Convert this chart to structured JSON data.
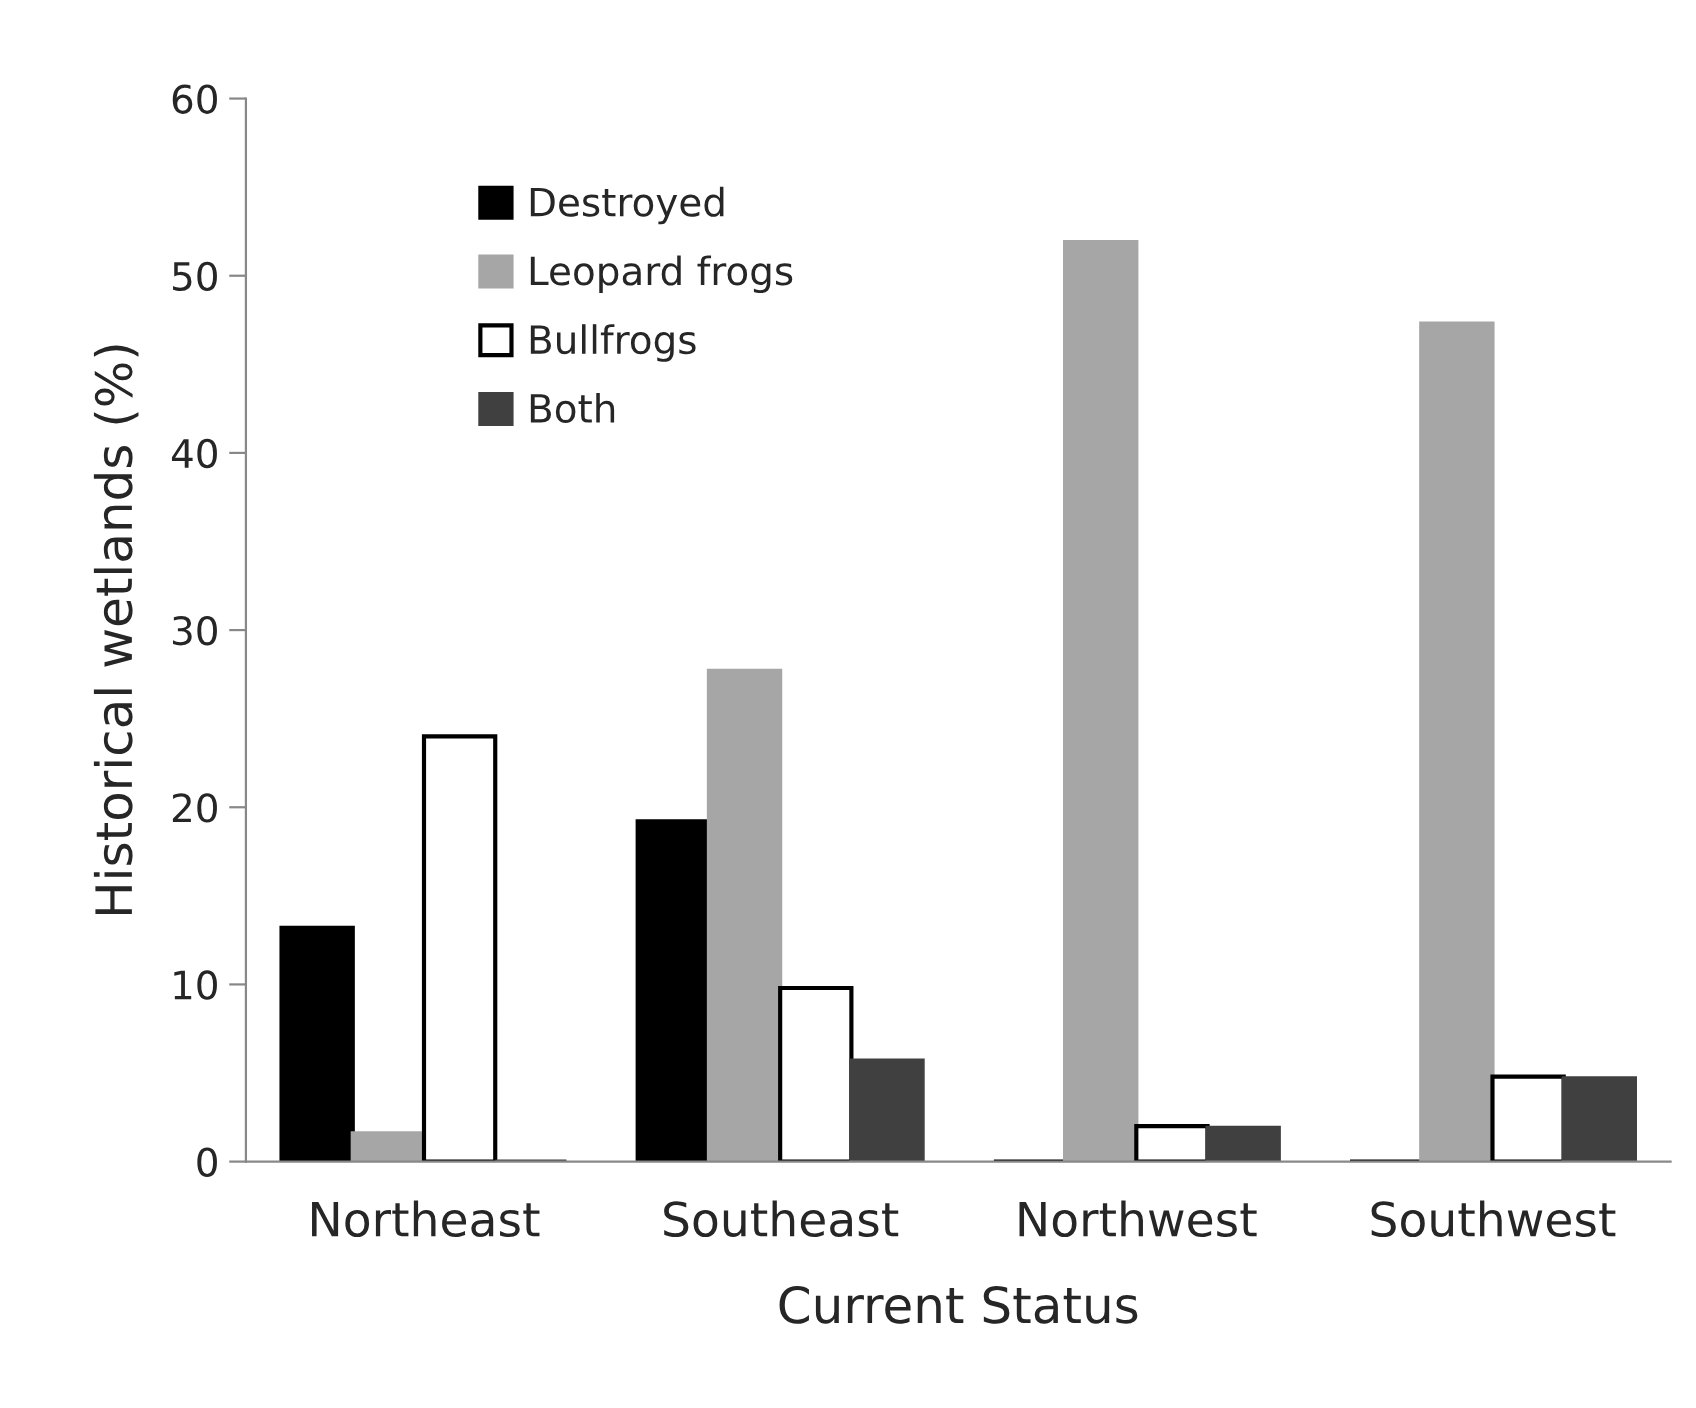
{
  "chart_data": {
    "type": "bar",
    "xlabel": "Current Status",
    "ylabel": "Historical wetlands (%)",
    "categories": [
      "Northeast",
      "Southeast",
      "Northwest",
      "Southwest"
    ],
    "series": [
      {
        "name": "Destroyed",
        "color": "#000000",
        "values": [
          13.2,
          19.2,
          0,
          0
        ]
      },
      {
        "name": "Leopard frogs",
        "color": "#a6a6a6",
        "values": [
          1.6,
          27.7,
          51.9,
          47.3
        ]
      },
      {
        "name": "Bullfrogs",
        "color": "#ffffff",
        "values": [
          24.0,
          9.8,
          2.0,
          4.8
        ]
      },
      {
        "name": "Both",
        "color": "#404040",
        "values": [
          0,
          5.7,
          1.9,
          4.7
        ]
      }
    ],
    "ylim": [
      0,
      60
    ],
    "yticks": [
      0,
      10,
      20,
      30,
      40,
      50,
      60
    ],
    "grid": false,
    "legend": "top left"
  }
}
